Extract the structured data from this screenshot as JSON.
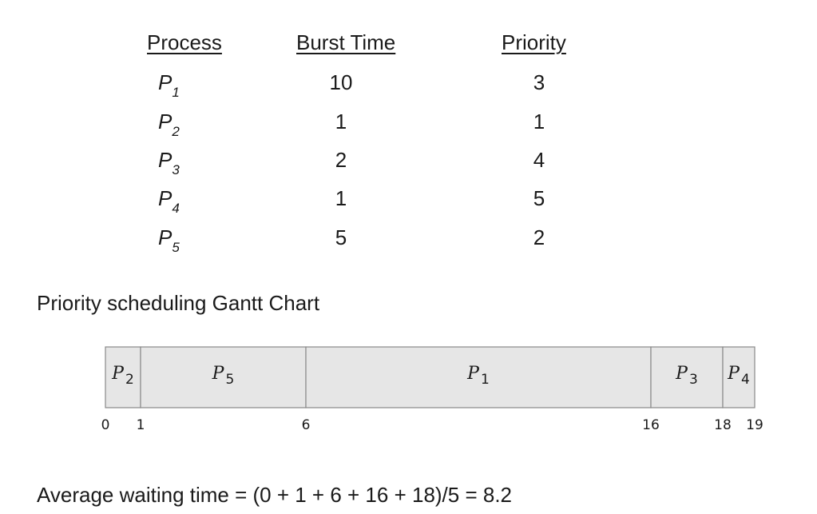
{
  "table": {
    "headers": {
      "process": "Process",
      "burst": "Burst Time",
      "priority": "Priority"
    },
    "rows": [
      {
        "process": "P",
        "sub": "1",
        "burst": "10",
        "priority": "3"
      },
      {
        "process": "P",
        "sub": "2",
        "burst": "1",
        "priority": "1"
      },
      {
        "process": "P",
        "sub": "3",
        "burst": "2",
        "priority": "4"
      },
      {
        "process": "P",
        "sub": "4",
        "burst": "1",
        "priority": "5"
      },
      {
        "process": "P",
        "sub": "5",
        "burst": "5",
        "priority": "2"
      }
    ]
  },
  "gantt": {
    "title": "Priority scheduling Gantt Chart",
    "fill": "#e6e6e6",
    "stroke": "#888888",
    "segments": [
      {
        "label": "P",
        "sub": "2",
        "start": 0,
        "end": 1
      },
      {
        "label": "P",
        "sub": "5",
        "start": 1,
        "end": 6
      },
      {
        "label": "P",
        "sub": "1",
        "start": 6,
        "end": 16
      },
      {
        "label": "P",
        "sub": "3",
        "start": 16,
        "end": 18
      },
      {
        "label": "P",
        "sub": "4",
        "start": 18,
        "end": 19
      }
    ],
    "ticks": [
      "0",
      "1",
      "6",
      "16",
      "18",
      "19"
    ]
  },
  "average": "Average waiting time = (0 + 1 + 6 + 16 + 18)/5 = 8.2"
}
